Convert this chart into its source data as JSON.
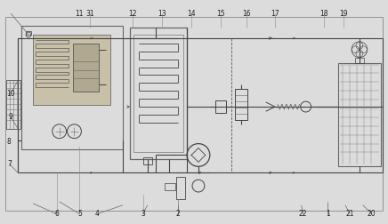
{
  "bg_color": "#dcdcdc",
  "line_color": "#444444",
  "lw": 0.8,
  "thin_lw": 0.5,
  "label_fs": 5.5,
  "label_color": "#222222",
  "component_labels": [
    [
      "1",
      370,
      242
    ],
    [
      "2",
      200,
      242
    ],
    [
      "3",
      160,
      242
    ],
    [
      "4",
      108,
      242
    ],
    [
      "5",
      88,
      242
    ],
    [
      "6",
      62,
      242
    ],
    [
      "7",
      8,
      185
    ],
    [
      "8",
      8,
      160
    ],
    [
      "9",
      10,
      132
    ],
    [
      "10",
      10,
      105
    ],
    [
      "11",
      88,
      14
    ],
    [
      "12",
      148,
      14
    ],
    [
      "13",
      182,
      14
    ],
    [
      "14",
      215,
      14
    ],
    [
      "15",
      248,
      14
    ],
    [
      "16",
      278,
      14
    ],
    [
      "17",
      310,
      14
    ],
    [
      "18",
      366,
      14
    ],
    [
      "19",
      388,
      14
    ],
    [
      "20",
      420,
      242
    ],
    [
      "21",
      395,
      242
    ],
    [
      "22",
      342,
      242
    ],
    [
      "31",
      100,
      14
    ]
  ]
}
